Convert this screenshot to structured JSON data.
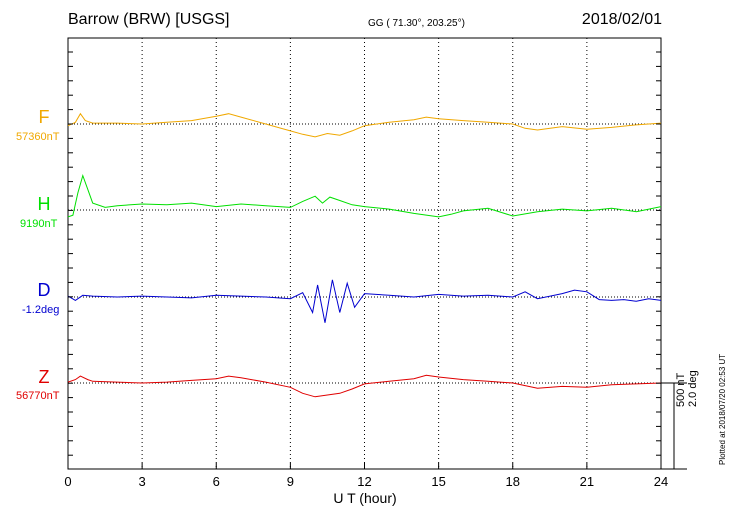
{
  "header": {
    "station": "Barrow (BRW)  [USGS]",
    "coords": "GG ( 71.30°, 203.25°)",
    "date": "2018/02/01"
  },
  "components": [
    {
      "letter": "F",
      "baseline": "57360nT",
      "color": "#f0a800"
    },
    {
      "letter": "H",
      "baseline": "9190nT",
      "color": "#00e000"
    },
    {
      "letter": "D",
      "baseline": "-1.2deg",
      "color": "#0000d0"
    },
    {
      "letter": "Z",
      "baseline": "56770nT",
      "color": "#e00000"
    }
  ],
  "scale": {
    "line1": "500 nT",
    "line2": "2.0 deg"
  },
  "plotted_note": "Plotted at 2018/07/20 02:53 UT",
  "chart_data": {
    "type": "line",
    "xlabel": "U T (hour)",
    "xlim": [
      0,
      24
    ],
    "xticks": [
      0,
      3,
      6,
      9,
      12,
      15,
      18,
      21,
      24
    ],
    "grid": "vertical dotted at 3-hour intervals; dotted baseline per trace",
    "series": [
      {
        "name": "F",
        "unit": "nT",
        "baseline": 57360,
        "x": [
          0,
          0.3,
          0.5,
          0.7,
          1,
          2,
          3,
          4,
          5,
          6,
          6.5,
          7,
          8,
          9,
          9.5,
          10,
          10.5,
          11,
          11.5,
          12,
          13,
          14,
          14.5,
          15,
          16,
          17,
          18,
          18.5,
          19,
          20,
          21,
          22,
          23,
          24
        ],
        "y": [
          -10,
          10,
          60,
          20,
          5,
          5,
          0,
          10,
          20,
          45,
          60,
          40,
          0,
          -40,
          -60,
          -75,
          -55,
          -65,
          -40,
          -10,
          10,
          25,
          40,
          30,
          20,
          10,
          0,
          -25,
          -35,
          -15,
          -30,
          -20,
          -5,
          5
        ]
      },
      {
        "name": "H",
        "unit": "nT",
        "baseline": 9190,
        "x": [
          0,
          0.2,
          0.4,
          0.6,
          0.8,
          1,
          1.5,
          2,
          3,
          4,
          5,
          6,
          7,
          8,
          9,
          9.5,
          10,
          10.3,
          10.6,
          11,
          11.5,
          12,
          13,
          14,
          15,
          15.5,
          16,
          17,
          18,
          19,
          20,
          21,
          22,
          23,
          24
        ],
        "y": [
          -40,
          -30,
          100,
          200,
          120,
          40,
          15,
          25,
          35,
          30,
          40,
          20,
          35,
          25,
          15,
          50,
          80,
          40,
          75,
          55,
          30,
          20,
          5,
          -20,
          -40,
          -25,
          -5,
          10,
          -35,
          -10,
          5,
          -5,
          10,
          -10,
          20
        ]
      },
      {
        "name": "D",
        "unit": "deg",
        "baseline": -1.2,
        "x": [
          0,
          0.3,
          0.6,
          1,
          2,
          3,
          4,
          5,
          6,
          7,
          8,
          9,
          9.5,
          9.9,
          10.1,
          10.4,
          10.7,
          11,
          11.3,
          11.6,
          12,
          13,
          14,
          15,
          16,
          17,
          18,
          18.5,
          19,
          20,
          20.5,
          21,
          21.5,
          22,
          22.5,
          23,
          23.5,
          24
        ],
        "y": [
          5,
          -20,
          10,
          5,
          0,
          5,
          0,
          -5,
          10,
          5,
          0,
          -10,
          25,
          -90,
          70,
          -150,
          100,
          -90,
          80,
          -60,
          20,
          10,
          0,
          15,
          5,
          10,
          0,
          30,
          -10,
          20,
          40,
          30,
          -15,
          -20,
          -15,
          -25,
          -10,
          -20
        ]
      },
      {
        "name": "Z",
        "unit": "nT",
        "baseline": 56770,
        "x": [
          0,
          0.3,
          0.5,
          0.8,
          1,
          2,
          3,
          4,
          5,
          6,
          6.5,
          7,
          8,
          9,
          9.5,
          10,
          10.5,
          11,
          11.5,
          12,
          13,
          14,
          14.5,
          15,
          16,
          17,
          18,
          18.5,
          19,
          20,
          21,
          22,
          23,
          24
        ],
        "y": [
          5,
          20,
          40,
          20,
          10,
          5,
          0,
          5,
          15,
          25,
          40,
          30,
          5,
          -25,
          -60,
          -80,
          -70,
          -60,
          -35,
          -5,
          10,
          25,
          45,
          35,
          20,
          10,
          0,
          -15,
          -30,
          -20,
          -25,
          -10,
          -5,
          0
        ]
      }
    ]
  }
}
